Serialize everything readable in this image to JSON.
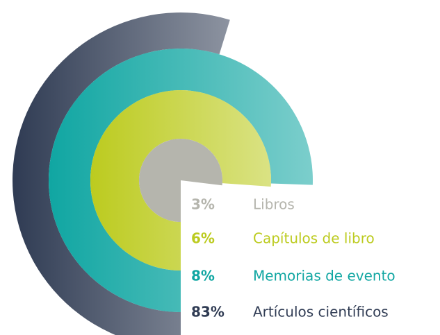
{
  "chart_data": {
    "type": "radial_bar",
    "categories": [
      "Libros",
      "Capítulos de libro",
      "Memorias de evento",
      "Artículos científicos"
    ],
    "values": [
      3,
      6,
      8,
      83
    ],
    "value_labels": [
      "3%",
      "6%",
      "8%",
      "83%"
    ],
    "colors": [
      "#b5b5ad",
      "#bccb1f",
      "#10a6a2",
      "#2f3b53"
    ]
  }
}
